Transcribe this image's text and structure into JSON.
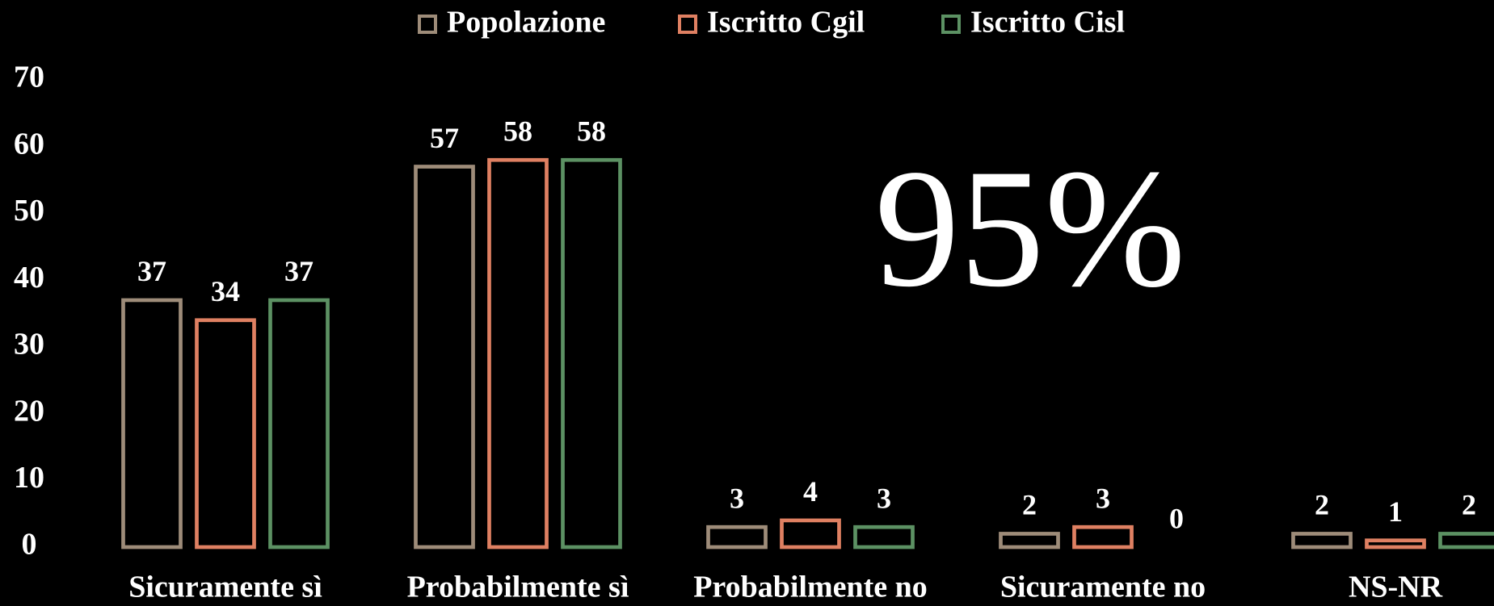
{
  "chart_data": {
    "type": "bar",
    "categories": [
      "Sicuramente sì",
      "Probabilmente sì",
      "Probabilmente no",
      "Sicuramente no",
      "NS-NR"
    ],
    "series": [
      {
        "name": "Popolazione",
        "color": "#9e8c79",
        "values": [
          37,
          57,
          3,
          2,
          2
        ]
      },
      {
        "name": "Iscritto Cgil",
        "color": "#df8062",
        "values": [
          34,
          58,
          4,
          3,
          1
        ]
      },
      {
        "name": "Iscritto Cisl",
        "color": "#5c9163",
        "values": [
          37,
          58,
          3,
          0,
          2
        ]
      }
    ],
    "ylim": [
      0,
      70
    ],
    "yticks": [
      0,
      10,
      20,
      30,
      40,
      50,
      60,
      70
    ],
    "annotation": "95%"
  }
}
